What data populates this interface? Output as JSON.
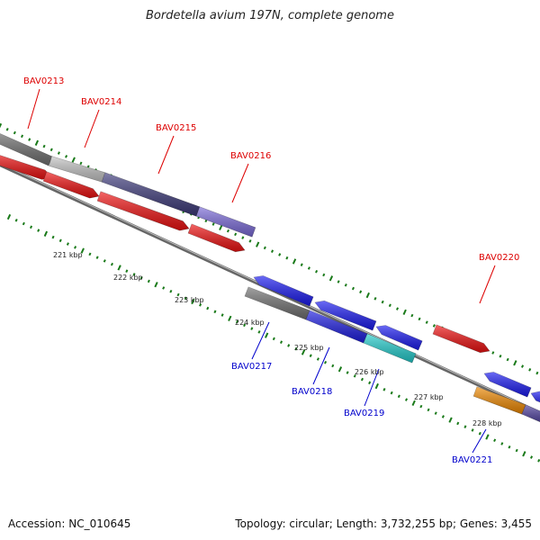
{
  "title": "Bordetella avium 197N, complete genome",
  "footer": {
    "accession": "Accession: NC_010645",
    "summary": "Topology: circular; Length: 3,732,255 bp; Genes: 3,455"
  },
  "colors": {
    "forward_label": "#dd0000",
    "reverse_label": "#0000cc",
    "tick": "#1a7a1a",
    "backbone": "#888888"
  },
  "kbp_labels": [
    "221 kbp",
    "222 kbp",
    "223 kbp",
    "224 kbp",
    "225 kbp",
    "226 kbp",
    "227 kbp",
    "228 kbp"
  ],
  "genes": [
    {
      "name": "BAV0213",
      "strand": "forward"
    },
    {
      "name": "BAV0214",
      "strand": "forward"
    },
    {
      "name": "BAV0215",
      "strand": "forward"
    },
    {
      "name": "BAV0216",
      "strand": "forward"
    },
    {
      "name": "BAV0217",
      "strand": "reverse"
    },
    {
      "name": "BAV0218",
      "strand": "reverse"
    },
    {
      "name": "BAV0219",
      "strand": "reverse"
    },
    {
      "name": "BAV0220",
      "strand": "forward"
    },
    {
      "name": "BAV0221",
      "strand": "reverse"
    }
  ]
}
